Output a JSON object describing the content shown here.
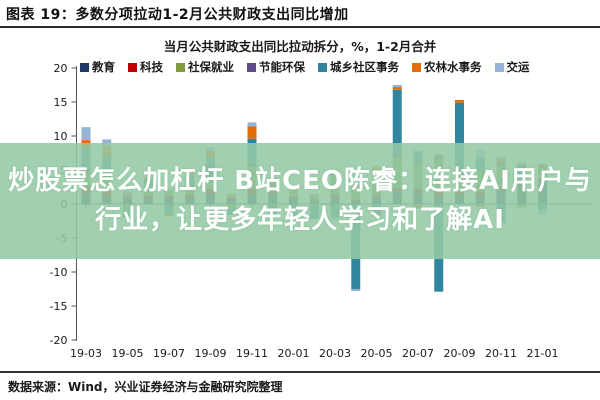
{
  "report": {
    "title": "图表 19：多数分项拉动1-2月公共财政支出同比增加",
    "source": "数据来源：Wind，兴业证券经济与金融研究院整理"
  },
  "banner": {
    "line1": "炒股票怎么加杠杆 B站CEO陈睿：连接AI用户与",
    "line2": "行业，让更多年轻人学习和了解AI"
  },
  "colors": {
    "banner_bg": "rgba(148,202,165,0.88)",
    "axis": "#555555",
    "text": "#1a1a1a"
  },
  "chart_data": {
    "type": "bar",
    "stacked": true,
    "title": "当月公共财政支出同比拉动拆分，%，1-2月合并",
    "unit": "%",
    "xlabel": "",
    "ylabel": "",
    "ylim": [
      -20,
      20
    ],
    "ytick_step": 5,
    "yticks": [
      20,
      15,
      10,
      5,
      0,
      -5,
      -10,
      -15,
      -20
    ],
    "grid": false,
    "legend_position": "top",
    "categories": [
      "19-03",
      "19-04",
      "19-05",
      "19-06",
      "19-07",
      "19-08",
      "19-09",
      "19-10",
      "19-11",
      "19-12",
      "20-01",
      "20-02",
      "20-03",
      "20-04",
      "20-05",
      "20-06",
      "20-07",
      "20-08",
      "20-09",
      "20-10",
      "20-11",
      "20-12",
      "21-01"
    ],
    "x_tick_labels": [
      "19-03",
      "19-05",
      "19-07",
      "19-09",
      "19-11",
      "20-01",
      "20-03",
      "20-05",
      "20-07",
      "20-09",
      "20-11",
      "21-01"
    ],
    "series": [
      {
        "name": "教育",
        "color": "#1F3864",
        "values": [
          1.6,
          1.2,
          0.7,
          0.8,
          0.8,
          0.9,
          1.4,
          0.6,
          1.5,
          1.4,
          0.8,
          0.5,
          1.0,
          0.4,
          0.9,
          1.8,
          1.6,
          1.1,
          1.3,
          1.2,
          2.0,
          2.8,
          3.2
        ]
      },
      {
        "name": "科技",
        "color": "#C00000",
        "values": [
          0.9,
          0.7,
          0.3,
          0.4,
          0.4,
          0.5,
          0.8,
          0.3,
          0.7,
          0.5,
          0.3,
          0.2,
          0.4,
          0.2,
          0.4,
          0.5,
          0.6,
          0.6,
          0.5,
          0.5,
          0.4,
          0.4,
          0.5
        ]
      },
      {
        "name": "社保就业",
        "color": "#7F9B3D",
        "values": [
          2.2,
          2.0,
          -0.8,
          0.9,
          0.9,
          1.2,
          1.7,
          -0.6,
          3.4,
          0.9,
          0.6,
          0.4,
          2.8,
          2.0,
          3.2,
          4.6,
          3.8,
          4.9,
          2.2,
          2.9,
          3.4,
          -0.5,
          1.6
        ]
      },
      {
        "name": "节能环保",
        "color": "#5F4A8B",
        "values": [
          0.4,
          0.3,
          0.2,
          0.1,
          -0.4,
          0.2,
          0.3,
          0.1,
          0.4,
          0.2,
          0.1,
          0.1,
          0.2,
          0.1,
          0.3,
          0.5,
          0.3,
          0.4,
          0.3,
          0.3,
          0.3,
          0.2,
          0.2
        ]
      },
      {
        "name": "城乡社区事务",
        "color": "#31859C",
        "values": [
          3.1,
          2.8,
          -1.2,
          1.2,
          -1.0,
          1.5,
          2.6,
          -1.0,
          3.6,
          -1.5,
          -1.4,
          -2.2,
          -2.0,
          -12.5,
          -1.8,
          9.4,
          1.4,
          -12.9,
          10.6,
          1.8,
          -2.8,
          2.4,
          -0.9
        ]
      },
      {
        "name": "农林水事务",
        "color": "#E36C0A",
        "values": [
          1.2,
          1.5,
          0.4,
          0.4,
          -0.4,
          0.5,
          1.0,
          0.4,
          1.8,
          0.6,
          0.3,
          0.2,
          0.5,
          0.3,
          0.6,
          0.4,
          -0.6,
          0.2,
          0.4,
          -0.4,
          0.6,
          0.2,
          0.4
        ]
      },
      {
        "name": "交运",
        "color": "#95B3D7",
        "values": [
          1.9,
          1.0,
          0.3,
          0.2,
          0.2,
          0.3,
          0.6,
          0.2,
          0.6,
          0.3,
          -0.4,
          0.1,
          -0.3,
          -0.3,
          0.2,
          0.3,
          0.2,
          0.2,
          -0.2,
          1.2,
          0.3,
          0.2,
          -0.6
        ]
      }
    ]
  }
}
